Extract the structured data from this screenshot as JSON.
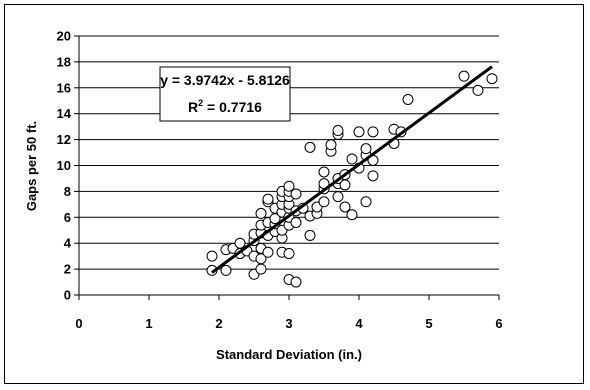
{
  "chart_data": {
    "type": "scatter",
    "title": "",
    "xlabel": "Standard Deviation (in.)",
    "ylabel": "Gaps per 50 ft.",
    "xlim": [
      0,
      6
    ],
    "ylim": [
      0,
      20
    ],
    "x_ticks": [
      "0",
      "1",
      "2",
      "3",
      "4",
      "5",
      "6"
    ],
    "y_ticks": [
      "0",
      "2",
      "4",
      "6",
      "8",
      "10",
      "12",
      "14",
      "16",
      "18",
      "20"
    ],
    "grid": "horizontal",
    "legend": "none",
    "trendline": {
      "slope": 3.9742,
      "intercept": -5.8126,
      "x_range": [
        1.9,
        5.9
      ],
      "equation_label": "y = 3.9742x - 5.8126",
      "r2_prefix": "R",
      "r2_sup": "2",
      "r2_value": " = 0.7716"
    },
    "series": [
      {
        "marker": "open-circle",
        "points": [
          [
            1.9,
            3.0
          ],
          [
            1.9,
            1.9
          ],
          [
            2.1,
            3.5
          ],
          [
            2.1,
            1.9
          ],
          [
            2.2,
            3.6
          ],
          [
            2.3,
            3.2
          ],
          [
            2.3,
            4.0
          ],
          [
            2.4,
            3.4
          ],
          [
            2.5,
            3.0
          ],
          [
            2.5,
            4.2
          ],
          [
            2.5,
            1.6
          ],
          [
            2.5,
            4.7
          ],
          [
            2.6,
            2.0
          ],
          [
            2.6,
            2.8
          ],
          [
            2.6,
            4.8
          ],
          [
            2.6,
            5.4
          ],
          [
            2.6,
            6.3
          ],
          [
            2.6,
            3.6
          ],
          [
            2.7,
            7.2
          ],
          [
            2.7,
            7.4
          ],
          [
            2.7,
            5.6
          ],
          [
            2.7,
            4.6
          ],
          [
            2.7,
            3.3
          ],
          [
            2.8,
            4.9
          ],
          [
            2.8,
            5.5
          ],
          [
            2.8,
            5.9
          ],
          [
            2.8,
            6.7
          ],
          [
            2.9,
            3.3
          ],
          [
            2.9,
            4.4
          ],
          [
            2.9,
            5.0
          ],
          [
            2.9,
            6.4
          ],
          [
            2.9,
            7.0
          ],
          [
            2.9,
            7.6
          ],
          [
            2.9,
            8.0
          ],
          [
            3.0,
            1.2
          ],
          [
            3.0,
            3.2
          ],
          [
            3.0,
            5.4
          ],
          [
            3.0,
            6.0
          ],
          [
            3.0,
            6.7
          ],
          [
            3.0,
            7.0
          ],
          [
            3.0,
            7.6
          ],
          [
            3.0,
            8.0
          ],
          [
            3.0,
            8.4
          ],
          [
            3.1,
            1.0
          ],
          [
            3.1,
            5.6
          ],
          [
            3.1,
            6.5
          ],
          [
            3.1,
            7.8
          ],
          [
            3.2,
            6.7
          ],
          [
            3.3,
            4.6
          ],
          [
            3.3,
            6.1
          ],
          [
            3.3,
            11.4
          ],
          [
            3.4,
            6.3
          ],
          [
            3.4,
            6.8
          ],
          [
            3.5,
            7.2
          ],
          [
            3.5,
            8.2
          ],
          [
            3.5,
            8.6
          ],
          [
            3.5,
            9.5
          ],
          [
            3.6,
            11.1
          ],
          [
            3.6,
            11.6
          ],
          [
            3.7,
            7.6
          ],
          [
            3.7,
            8.6
          ],
          [
            3.7,
            9.0
          ],
          [
            3.7,
            12.4
          ],
          [
            3.7,
            12.7
          ],
          [
            3.8,
            6.8
          ],
          [
            3.8,
            8.5
          ],
          [
            3.8,
            9.3
          ],
          [
            3.9,
            6.2
          ],
          [
            3.9,
            10.5
          ],
          [
            4.0,
            9.8
          ],
          [
            4.0,
            12.6
          ],
          [
            4.1,
            7.2
          ],
          [
            4.1,
            10.8
          ],
          [
            4.1,
            11.3
          ],
          [
            4.2,
            9.2
          ],
          [
            4.2,
            10.4
          ],
          [
            4.2,
            12.6
          ],
          [
            4.5,
            11.7
          ],
          [
            4.5,
            12.8
          ],
          [
            4.6,
            12.6
          ],
          [
            4.7,
            15.1
          ],
          [
            5.5,
            16.9
          ],
          [
            5.7,
            15.8
          ],
          [
            5.9,
            16.7
          ]
        ]
      }
    ]
  }
}
